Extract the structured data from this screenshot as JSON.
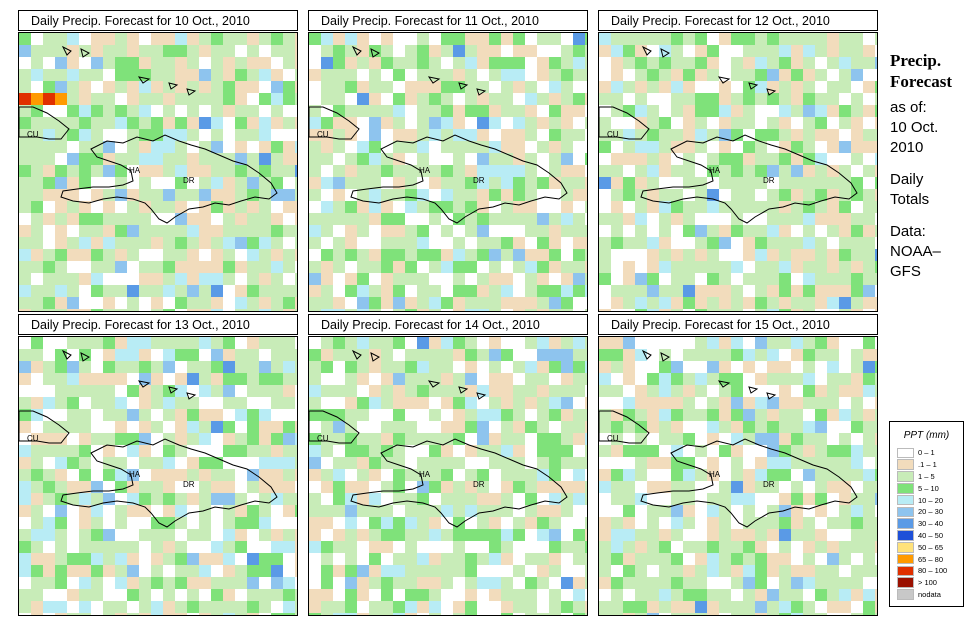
{
  "panels": [
    {
      "title": "Daily Precip. Forecast for  10 Oct., 2010",
      "seed": 11,
      "wet": 0.9
    },
    {
      "title": "Daily Precip. Forecast for  11 Oct., 2010",
      "seed": 23,
      "wet": 0.55
    },
    {
      "title": "Daily Precip. Forecast for  12 Oct., 2010",
      "seed": 37,
      "wet": 0.65
    },
    {
      "title": "Daily Precip. Forecast for  13 Oct., 2010",
      "seed": 41,
      "wet": 0.35
    },
    {
      "title": "Daily Precip. Forecast for  14 Oct., 2010",
      "seed": 53,
      "wet": 0.3
    },
    {
      "title": "Daily Precip. Forecast for  15 Oct., 2010",
      "seed": 67,
      "wet": 0.35
    }
  ],
  "map_labels": {
    "cuba": "CU",
    "haiti": "HA",
    "dominican_republic": "DR"
  },
  "side": {
    "title_line1": "Precip.",
    "title_line2": "Forecast",
    "as_of_label": "as of:",
    "date_line1": "10 Oct.",
    "date_line2": "2010",
    "totals_line1": "Daily",
    "totals_line2": "Totals",
    "data_line1": "Data:",
    "data_line2": "NOAA–",
    "data_line3": "GFS"
  },
  "legend": {
    "title": "PPT (mm)",
    "items": [
      {
        "label": "0 – 1",
        "color": "#ffffff"
      },
      {
        "label": ".1 – 1",
        "color": "#f2dcbc"
      },
      {
        "label": "1 – 5",
        "color": "#c8ecb8"
      },
      {
        "label": "5 – 10",
        "color": "#7fe27a"
      },
      {
        "label": "10 – 20",
        "color": "#b8ecf5"
      },
      {
        "label": "20 – 30",
        "color": "#8ec4ee"
      },
      {
        "label": "30 – 40",
        "color": "#5a9ae6"
      },
      {
        "label": "40 – 50",
        "color": "#1e50d8"
      },
      {
        "label": "50 – 65",
        "color": "#ffe27a"
      },
      {
        "label": "65 – 80",
        "color": "#ff9a00"
      },
      {
        "label": "80 – 100",
        "color": "#e03000"
      },
      {
        "label": "> 100",
        "color": "#9a1000"
      },
      {
        "label": "nodata",
        "color": "#c8c8c8"
      }
    ]
  }
}
